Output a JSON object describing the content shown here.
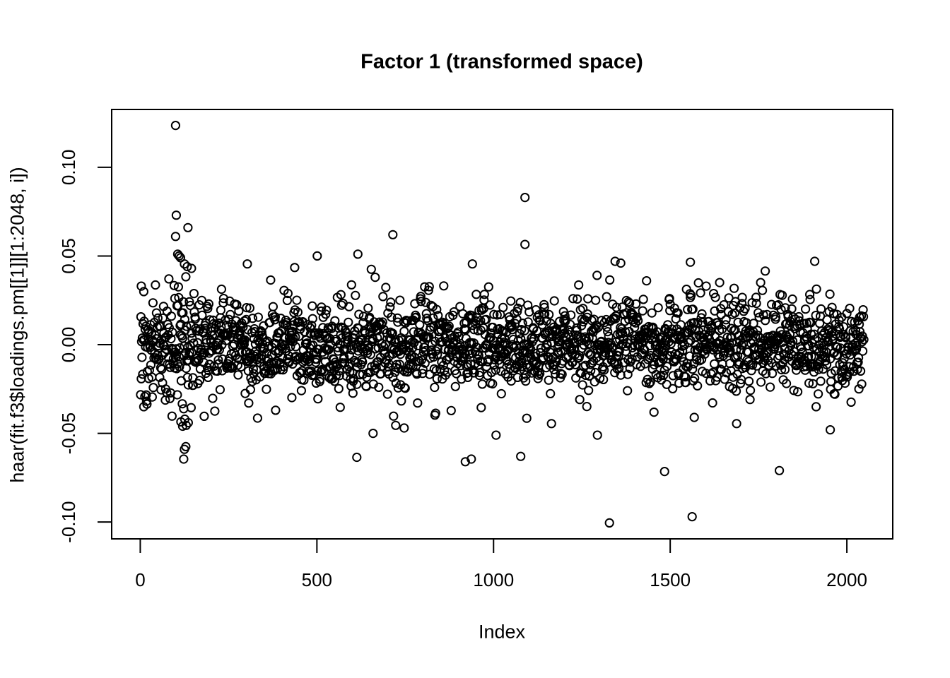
{
  "figure": {
    "background": "#ffffff",
    "foreground": "#000000"
  },
  "chart_data": {
    "type": "scatter",
    "title": "Factor 1 (transformed space)",
    "xlabel": "Index",
    "ylabel": "haar(fit.f3$loadings.pm[[1]][1:2048, i])",
    "n_points": 2048,
    "x_values": "sequential index 1..2048",
    "xlim": [
      -80.9,
      2129.9
    ],
    "ylim": [
      -0.1095,
      0.1326
    ],
    "x_ticks": [
      {
        "value": 0,
        "label": "0"
      },
      {
        "value": 500,
        "label": "500"
      },
      {
        "value": 1000,
        "label": "1000"
      },
      {
        "value": 1500,
        "label": "1500"
      },
      {
        "value": 2000,
        "label": "2000"
      }
    ],
    "y_ticks": [
      {
        "value": -0.1,
        "label": "-0.10"
      },
      {
        "value": -0.05,
        "label": "-0.05"
      },
      {
        "value": 0.0,
        "label": "0.00"
      },
      {
        "value": 0.05,
        "label": "0.05"
      },
      {
        "value": 0.1,
        "label": "0.10"
      }
    ],
    "marker": {
      "shape": "open-circle",
      "radius_px": 5.6,
      "stroke_px": 2,
      "color": "#000000"
    },
    "grid": false,
    "legend": false,
    "bulk": {
      "mean": 0,
      "core_sd": 0.0115,
      "tail_sd": 0.0205,
      "tail_fraction": 0.14,
      "left_region": {
        "through_index": 170,
        "sd_factor": 1.35
      },
      "clip": [
        -0.042,
        0.042
      ],
      "seed": 20480101
    },
    "outliers": [
      [
        100,
        0.1236
      ],
      [
        102,
        0.073
      ],
      [
        135,
        0.066
      ],
      [
        100,
        0.061
      ],
      [
        106,
        0.051
      ],
      [
        110,
        0.05
      ],
      [
        114,
        0.049
      ],
      [
        125,
        0.0455
      ],
      [
        133,
        0.044
      ],
      [
        145,
        0.043
      ],
      [
        3,
        0.033
      ],
      [
        303,
        0.0455
      ],
      [
        437,
        0.0435
      ],
      [
        501,
        0.05
      ],
      [
        616,
        0.051
      ],
      [
        654,
        0.0425
      ],
      [
        665,
        0.038
      ],
      [
        715,
        0.062
      ],
      [
        940,
        0.0455
      ],
      [
        1089,
        0.083
      ],
      [
        1089,
        0.0565
      ],
      [
        1344,
        0.047
      ],
      [
        1360,
        0.046
      ],
      [
        1557,
        0.0465
      ],
      [
        1640,
        0.035
      ],
      [
        1769,
        0.0415
      ],
      [
        1909,
        0.047
      ],
      [
        10,
        -0.035
      ],
      [
        115,
        -0.0435
      ],
      [
        120,
        -0.046
      ],
      [
        126,
        -0.042
      ],
      [
        130,
        -0.0455
      ],
      [
        136,
        -0.044
      ],
      [
        123,
        -0.0645
      ],
      [
        125,
        -0.059
      ],
      [
        129,
        -0.0575
      ],
      [
        383,
        -0.037
      ],
      [
        613,
        -0.0635
      ],
      [
        659,
        -0.05
      ],
      [
        723,
        -0.0455
      ],
      [
        747,
        -0.047
      ],
      [
        920,
        -0.066
      ],
      [
        937,
        -0.0645
      ],
      [
        1007,
        -0.051
      ],
      [
        1077,
        -0.063
      ],
      [
        1094,
        -0.0415
      ],
      [
        1164,
        -0.0445
      ],
      [
        1294,
        -0.051
      ],
      [
        1328,
        -0.1005
      ],
      [
        1484,
        -0.0715
      ],
      [
        1562,
        -0.097
      ],
      [
        1568,
        -0.041
      ],
      [
        1688,
        -0.0445
      ],
      [
        1809,
        -0.071
      ],
      [
        1953,
        -0.048
      ]
    ]
  }
}
